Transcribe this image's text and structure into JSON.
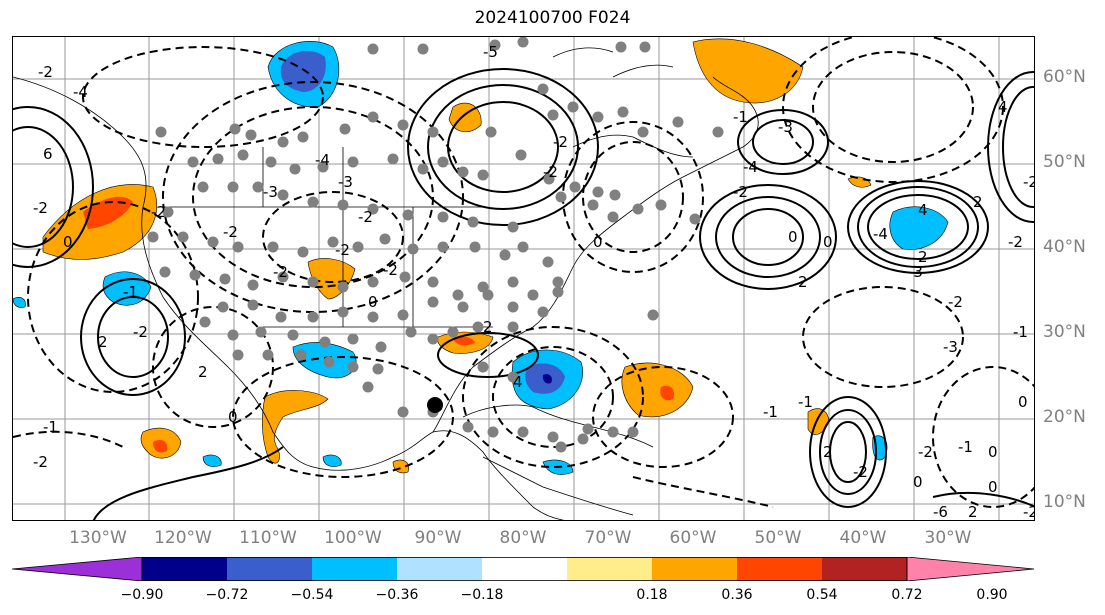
{
  "title": "2024100700 F024",
  "map": {
    "lon_ticks": [
      "130°W",
      "120°W",
      "110°W",
      "100°W",
      "90°W",
      "80°W",
      "70°W",
      "60°W",
      "50°W",
      "40°W",
      "30°W"
    ],
    "lat_ticks": [
      "60°N",
      "50°N",
      "40°N",
      "30°N",
      "20°N",
      "10°N"
    ],
    "contour_labels": [
      "-2",
      "-4",
      "6",
      "-2",
      "0",
      "-2",
      "-3",
      "-2",
      "-2",
      "0",
      "-4",
      "-2",
      "-5",
      "-2",
      "-2",
      "0",
      "2",
      "4",
      "-3",
      "0",
      "0",
      "2",
      "-3",
      "-2",
      "-3",
      "2",
      "4",
      "-2",
      "-2",
      "-1",
      "0",
      "-3",
      "-2",
      "-2",
      "-1",
      "-2",
      "-1",
      "-2",
      "0",
      "2",
      "2",
      "0",
      "-1",
      "-4",
      "-2",
      "-1",
      "-1",
      "2",
      "-2",
      "-2",
      "0",
      "-6",
      "2",
      "-2",
      "-4",
      "4",
      "2",
      "0",
      "-1",
      "0"
    ]
  },
  "colorbar": {
    "tick_labels": [
      "−0.90",
      "−0.72",
      "−0.54",
      "−0.36",
      "−0.18",
      "0.18",
      "0.36",
      "0.54",
      "0.72",
      "0.90"
    ],
    "colors": [
      "#9b30d9",
      "#00008b",
      "#3a5fcd",
      "#00bfff",
      "#b0e2ff",
      "#ffffff",
      "#ffec8b",
      "#ffa500",
      "#ff4500",
      "#b22222",
      "#ff82ab"
    ]
  }
}
